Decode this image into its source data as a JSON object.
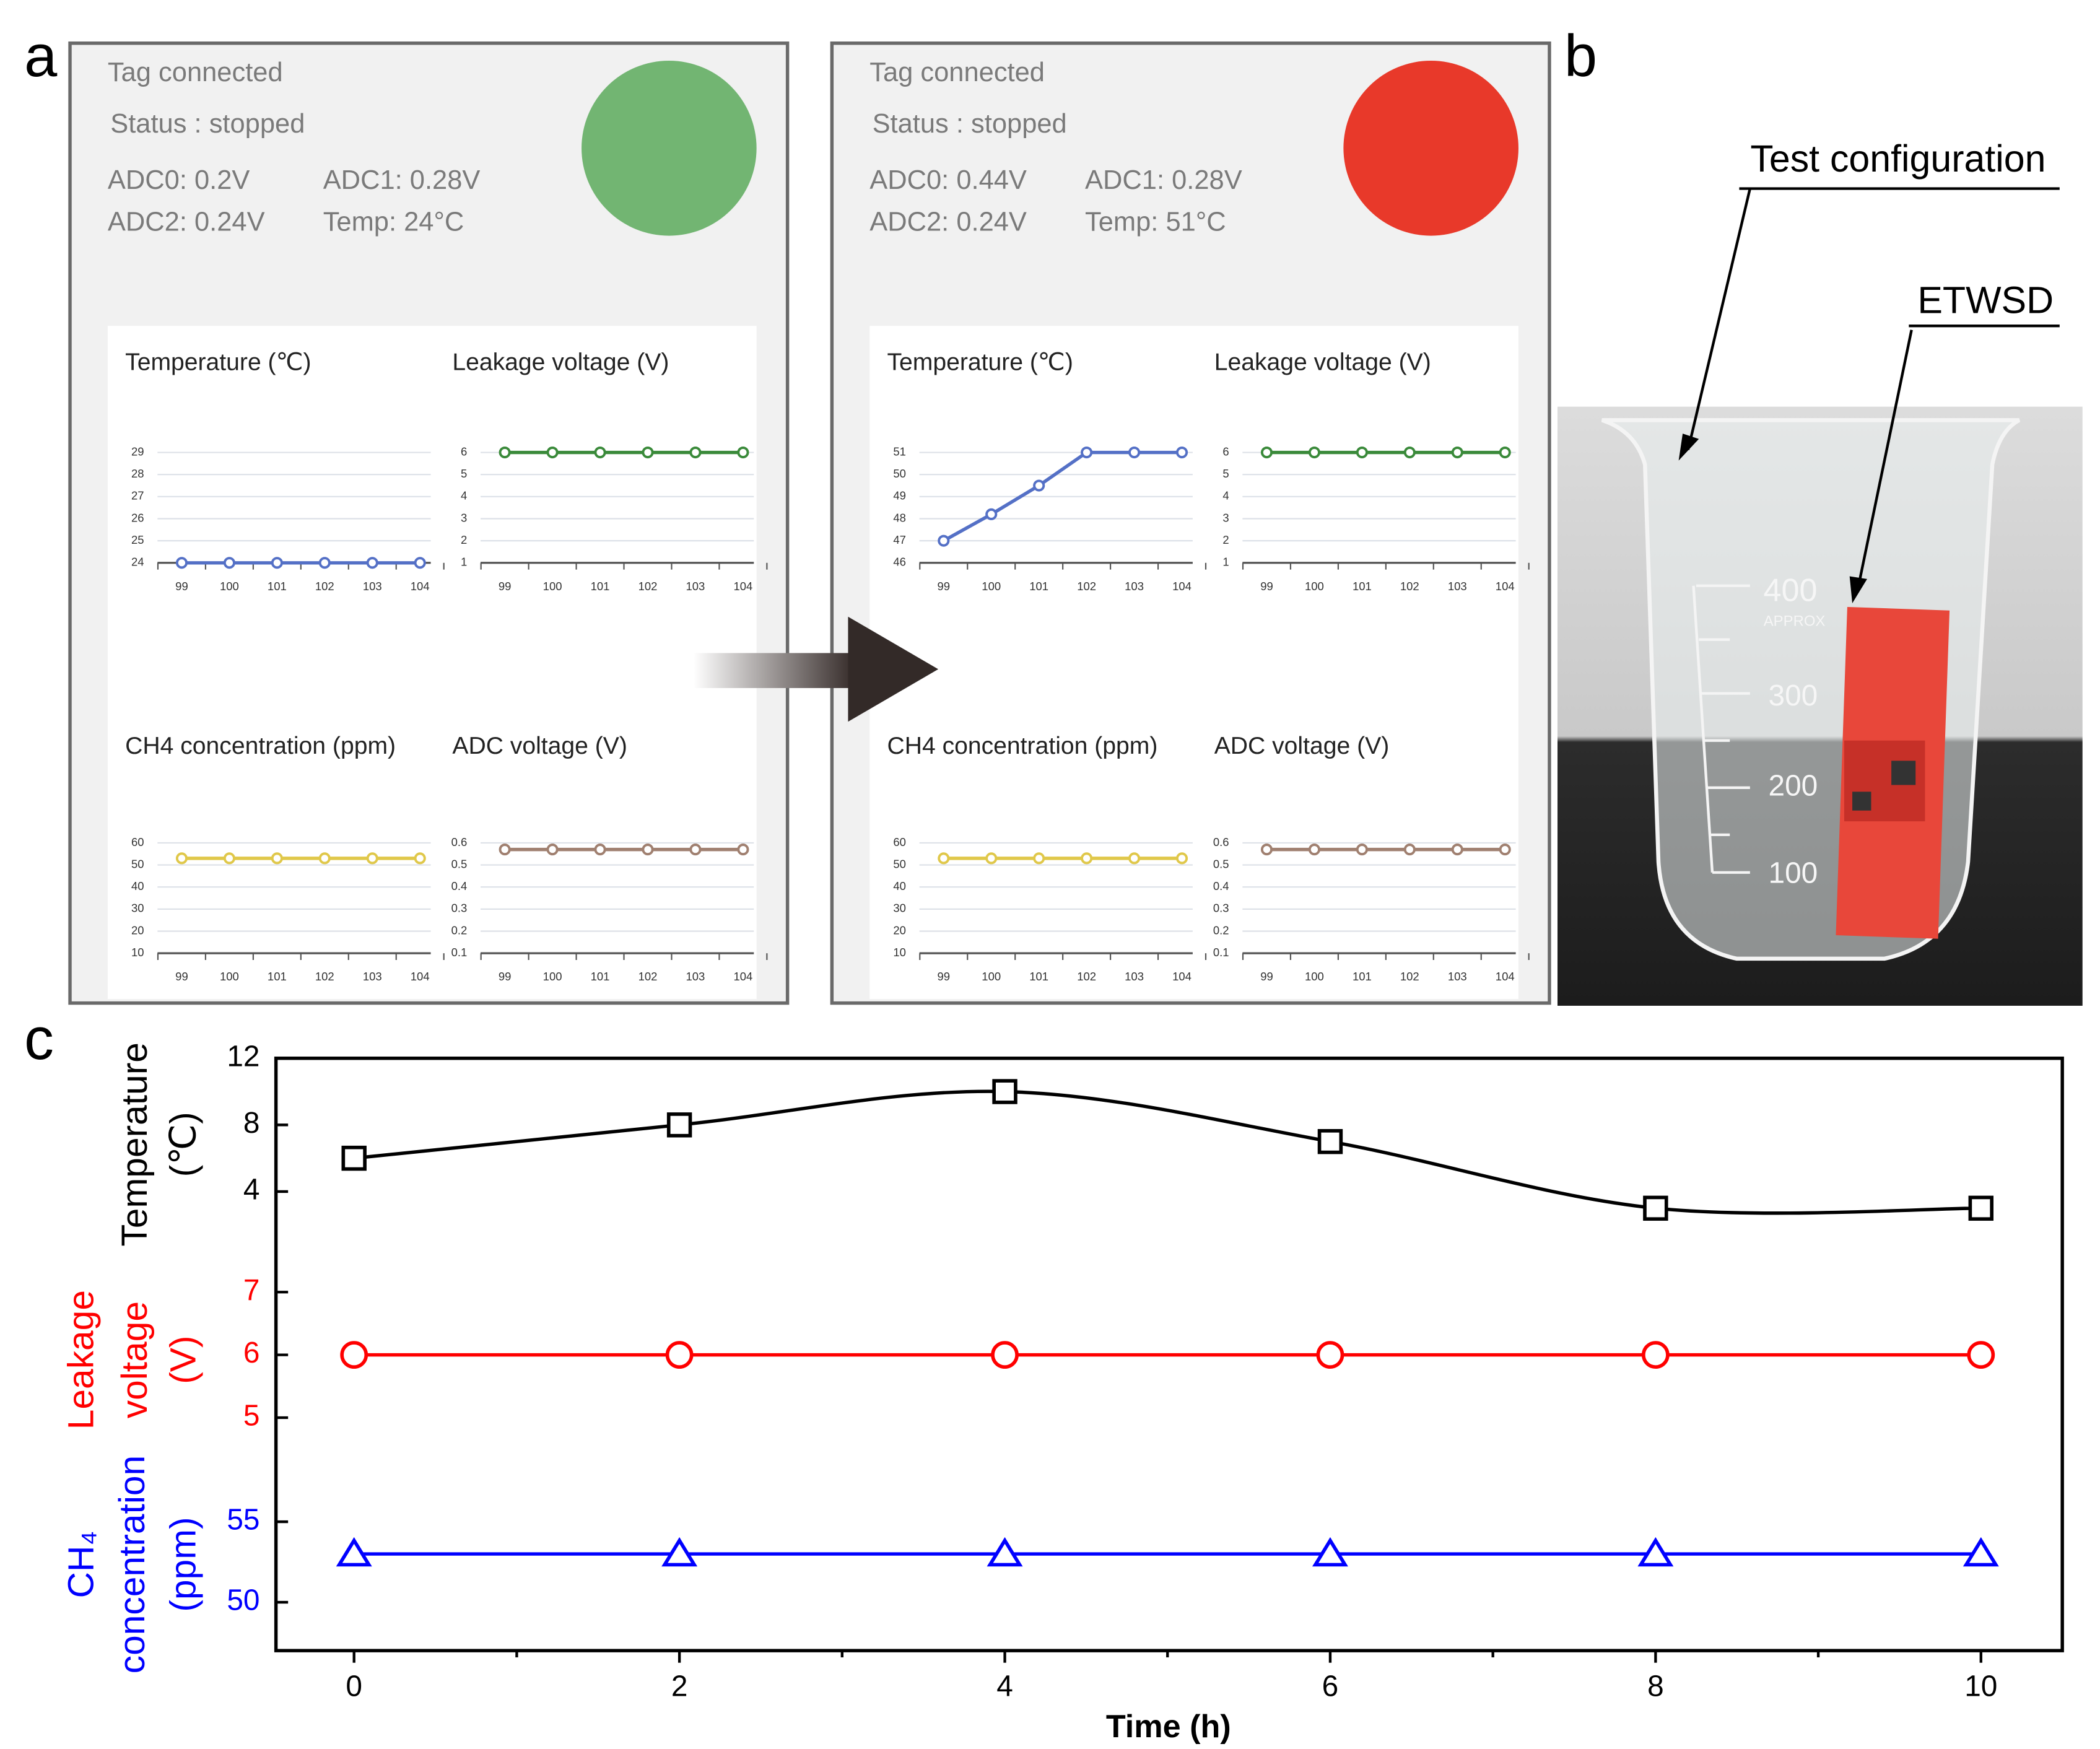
{
  "panel_labels": [
    "a",
    "b",
    "c"
  ],
  "screens": [
    {
      "status_lines": [
        "Tag connected",
        "Status : stopped"
      ],
      "readings": [
        "ADC0: 0.2V",
        "ADC1: 0.28V",
        "ADC2: 0.24V",
        "Temp: 24°C"
      ],
      "indicator_color": "#72b572"
    },
    {
      "status_lines": [
        "Tag connected",
        "Status : stopped"
      ],
      "readings": [
        "ADC0: 0.44V",
        "ADC1: 0.28V",
        "ADC2: 0.24V",
        "Temp: 51°C"
      ],
      "indicator_color": "#e8392a"
    }
  ],
  "photo": {
    "labels": [
      "Test configuration",
      "ETWSD"
    ],
    "beaker_marks": [
      "400",
      "APPROX",
      "300",
      "200",
      "100"
    ]
  },
  "chart_data": [
    {
      "type": "line",
      "title": "Temperature (℃)",
      "categories": [
        99,
        100,
        101,
        102,
        103,
        104
      ],
      "values": [
        24,
        24,
        24,
        24,
        24,
        24
      ],
      "color": "#5470c6",
      "ylim": [
        24,
        29
      ],
      "yticks": [
        24,
        25,
        26,
        27,
        28,
        29
      ],
      "grid": true
    },
    {
      "type": "line",
      "title": "Leakage voltage (V)",
      "categories": [
        99,
        100,
        101,
        102,
        103,
        104
      ],
      "values": [
        6,
        6,
        6,
        6,
        6,
        6
      ],
      "color": "#3a8a3a",
      "ylim": [
        1,
        6
      ],
      "yticks": [
        1,
        2,
        3,
        4,
        5,
        6
      ],
      "grid": true
    },
    {
      "type": "line",
      "title": "CH4 concentration (ppm)",
      "categories": [
        99,
        100,
        101,
        102,
        103,
        104
      ],
      "values": [
        53,
        53,
        53,
        53,
        53,
        53
      ],
      "color": "#e0c84a",
      "ylim": [
        10,
        60
      ],
      "yticks": [
        10,
        20,
        30,
        40,
        50,
        60
      ],
      "grid": true
    },
    {
      "type": "line",
      "title": "ADC voltage (V)",
      "categories": [
        99,
        100,
        101,
        102,
        103,
        104
      ],
      "values": [
        0.57,
        0.57,
        0.57,
        0.57,
        0.57,
        0.57
      ],
      "color": "#a08070",
      "ylim": [
        0.1,
        0.6
      ],
      "yticks": [
        0.1,
        0.2,
        0.3,
        0.4,
        0.5,
        0.6
      ],
      "grid": true
    },
    {
      "type": "line",
      "title": "Temperature (℃)",
      "categories": [
        99,
        100,
        101,
        102,
        103,
        104
      ],
      "values": [
        47,
        48.2,
        49.5,
        51,
        51,
        51
      ],
      "color": "#5470c6",
      "ylim": [
        46,
        51
      ],
      "yticks": [
        46,
        47,
        48,
        49,
        50,
        51
      ],
      "grid": true
    },
    {
      "type": "line",
      "title": "Leakage voltage (V)",
      "categories": [
        99,
        100,
        101,
        102,
        103,
        104
      ],
      "values": [
        6,
        6,
        6,
        6,
        6,
        6
      ],
      "color": "#3a8a3a",
      "ylim": [
        1,
        6
      ],
      "yticks": [
        1,
        2,
        3,
        4,
        5,
        6
      ],
      "grid": true
    },
    {
      "type": "line",
      "title": "CH4 concentration (ppm)",
      "categories": [
        99,
        100,
        101,
        102,
        103,
        104
      ],
      "values": [
        53,
        53,
        53,
        53,
        53,
        53
      ],
      "color": "#e0c84a",
      "ylim": [
        10,
        60
      ],
      "yticks": [
        10,
        20,
        30,
        40,
        50,
        60
      ],
      "grid": true
    },
    {
      "type": "line",
      "title": "ADC voltage (V)",
      "categories": [
        99,
        100,
        101,
        102,
        103,
        104
      ],
      "values": [
        0.57,
        0.57,
        0.57,
        0.57,
        0.57,
        0.57
      ],
      "color": "#a08070",
      "ylim": [
        0.1,
        0.6
      ],
      "yticks": [
        0.1,
        0.2,
        0.3,
        0.4,
        0.5,
        0.6
      ],
      "grid": true
    },
    {
      "type": "multiaxis",
      "xlabel": "Time (h)",
      "x": [
        0,
        2,
        4,
        6,
        8,
        10
      ],
      "xlim": [
        -0.48,
        10.5
      ],
      "xticks": [
        0,
        2,
        4,
        6,
        8,
        10
      ],
      "xminorticks": [
        1,
        3,
        5,
        7,
        9
      ],
      "ylabel": [
        "Temperature",
        "(℃)"
      ],
      "ylim": [
        0,
        12
      ],
      "yticks": [
        4,
        8,
        12
      ],
      "ycolor": "#000000",
      "y2label": [
        "Leakage",
        "voltage",
        "(V)"
      ],
      "y2lim": [
        4.42,
        7.54
      ],
      "y2ticks": [
        5,
        6,
        7
      ],
      "y2color": "#ff0000",
      "y3label": [
        "CH₄",
        "concentration",
        "(ppm)"
      ],
      "y3lim": [
        47,
        59.2
      ],
      "y3ticks": [
        50,
        55
      ],
      "y3color": "#0000ff",
      "series": [
        {
          "axis": "y",
          "color": "#000000",
          "marker": "square",
          "smooth": true,
          "values": [
            6,
            8,
            10,
            7,
            3,
            3
          ]
        },
        {
          "axis": "y2",
          "color": "#ff0000",
          "marker": "circle",
          "values": [
            6,
            6,
            6,
            6,
            6,
            6
          ]
        },
        {
          "axis": "y3",
          "color": "#0000ff",
          "marker": "triangle",
          "values": [
            53,
            53,
            53,
            53,
            53,
            53
          ]
        }
      ]
    }
  ]
}
